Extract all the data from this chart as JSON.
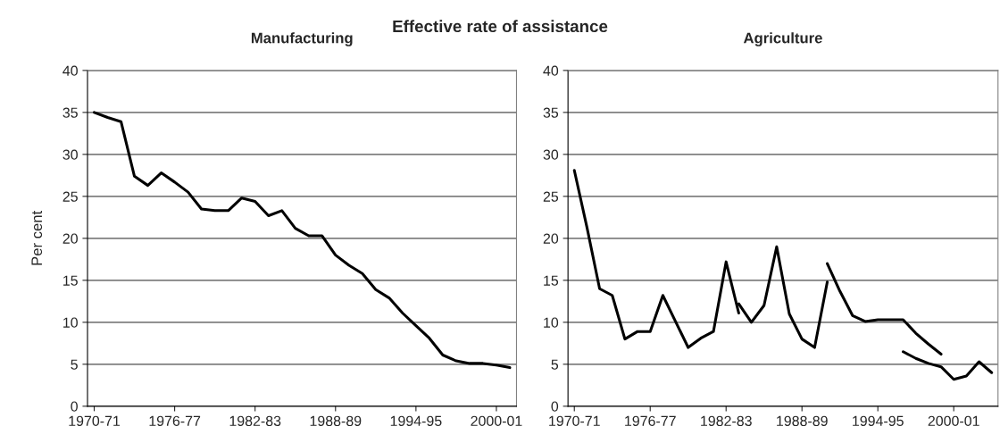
{
  "chart_data": [
    {
      "type": "line",
      "title": "Manufacturing",
      "ylabel": "Per cent",
      "annotations": [
        "Effective rate of assistance"
      ],
      "categories": [
        "1970-71",
        null,
        null,
        null,
        null,
        null,
        "1976-77",
        null,
        null,
        null,
        null,
        null,
        "1982-83",
        null,
        null,
        null,
        null,
        null,
        "1988-89",
        null,
        null,
        null,
        null,
        null,
        "1994-95",
        null,
        null,
        null,
        null,
        null,
        "2000-01",
        null
      ],
      "series": [
        {
          "color": "#000000",
          "values": [
            35.0,
            34.4,
            33.9,
            27.4,
            26.3,
            27.8,
            26.7,
            25.5,
            23.5,
            23.3,
            23.3,
            24.8,
            24.4,
            22.7,
            23.3,
            21.2,
            20.3,
            20.3,
            18.0,
            16.8,
            15.8,
            13.9,
            12.9,
            11.1,
            9.6,
            8.1,
            6.1,
            5.4,
            5.1,
            5.1,
            4.9,
            4.6
          ]
        }
      ],
      "ylim": [
        0,
        40
      ],
      "yticks": [
        0,
        5,
        10,
        15,
        20,
        25,
        30,
        35,
        40
      ],
      "grid": "y",
      "legend": false,
      "marker": "none",
      "line_style": "solid"
    },
    {
      "type": "line",
      "title": "Agriculture",
      "categories": [
        "1970-71",
        null,
        null,
        null,
        null,
        null,
        "1976-77",
        null,
        null,
        null,
        null,
        null,
        "1982-83",
        null,
        null,
        null,
        null,
        null,
        "1988-89",
        null,
        null,
        null,
        null,
        null,
        "1994-95",
        null,
        null,
        null,
        null,
        null,
        "2000-01",
        null,
        null,
        null
      ],
      "series": [
        {
          "color": "#000000",
          "values": [
            28.1,
            21.3,
            14.0,
            13.2,
            8.0,
            8.9,
            8.9,
            13.2,
            10.1,
            7.0,
            8.1,
            8.9,
            17.2,
            11.1,
            null,
            null,
            null,
            null,
            null,
            null,
            null,
            null,
            null,
            null,
            null,
            null,
            null,
            null,
            null,
            null,
            null,
            null,
            null,
            null
          ]
        },
        {
          "color": "#000000",
          "values": [
            null,
            null,
            null,
            null,
            null,
            null,
            null,
            null,
            null,
            null,
            null,
            null,
            null,
            12.2,
            10.0,
            12.0,
            19.0,
            11.0,
            8.0,
            7.0,
            14.8,
            null,
            null,
            null,
            null,
            null,
            null,
            null,
            null,
            null,
            null,
            null,
            null,
            null
          ]
        },
        {
          "color": "#000000",
          "values": [
            null,
            null,
            null,
            null,
            null,
            null,
            null,
            null,
            null,
            null,
            null,
            null,
            null,
            null,
            null,
            null,
            null,
            null,
            null,
            null,
            17.0,
            13.7,
            10.8,
            10.1,
            10.3,
            10.3,
            10.3,
            8.7,
            7.4,
            6.2,
            null,
            null,
            null,
            null
          ]
        },
        {
          "color": "#000000",
          "values": [
            null,
            null,
            null,
            null,
            null,
            null,
            null,
            null,
            null,
            null,
            null,
            null,
            null,
            null,
            null,
            null,
            null,
            null,
            null,
            null,
            null,
            null,
            null,
            null,
            null,
            null,
            6.5,
            5.7,
            5.1,
            4.7,
            3.2,
            3.6,
            5.3,
            4.0
          ]
        }
      ],
      "ylim": [
        0,
        40
      ],
      "yticks": [
        0,
        5,
        10,
        15,
        20,
        25,
        30,
        35,
        40
      ],
      "grid": "y",
      "legend": false,
      "marker": "none",
      "line_style": "solid"
    }
  ]
}
